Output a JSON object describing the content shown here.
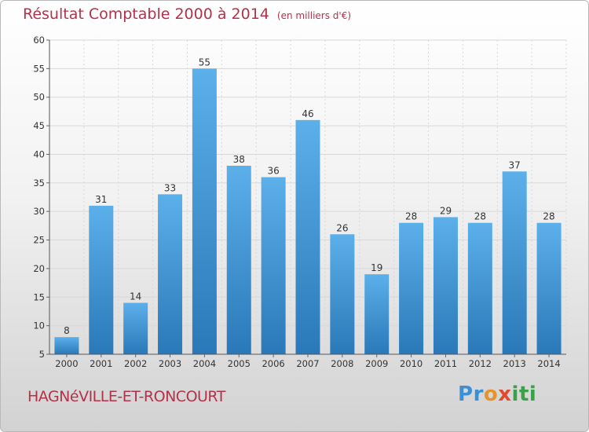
{
  "title": "Résultat Comptable 2000 à 2014",
  "subtitle": "(en milliers d'€)",
  "footer_name": "HAGNéVILLE-ET-RONCOURT",
  "brand": {
    "letters": [
      "P",
      "r",
      "o",
      "x",
      "i",
      "t",
      "i"
    ],
    "colors": [
      "#3a8fd6",
      "#3a8fd6",
      "#e7922c",
      "#e04b2f",
      "#3aa04a",
      "#3aa04a",
      "#3aa04a"
    ]
  },
  "colors": {
    "accent": "#b2324a",
    "bar_light": "#5cb0ea",
    "bar_dark": "#2a78b8",
    "grid": "#d8d8d8"
  },
  "chart_data": {
    "type": "bar",
    "categories": [
      "2000",
      "2001",
      "2002",
      "2003",
      "2004",
      "2005",
      "2006",
      "2007",
      "2008",
      "2009",
      "2010",
      "2011",
      "2012",
      "2013",
      "2014"
    ],
    "values": [
      8,
      31,
      14,
      33,
      55,
      38,
      36,
      46,
      26,
      19,
      28,
      29,
      28,
      37,
      28
    ],
    "ylim": [
      5,
      60
    ],
    "yticks": [
      5,
      10,
      15,
      20,
      25,
      30,
      35,
      40,
      45,
      50,
      55,
      60
    ],
    "title": "Résultat Comptable 2000 à 2014",
    "subtitle": "(en milliers d'€)",
    "xlabel": "",
    "ylabel": "",
    "grid": true,
    "data_labels": true
  }
}
